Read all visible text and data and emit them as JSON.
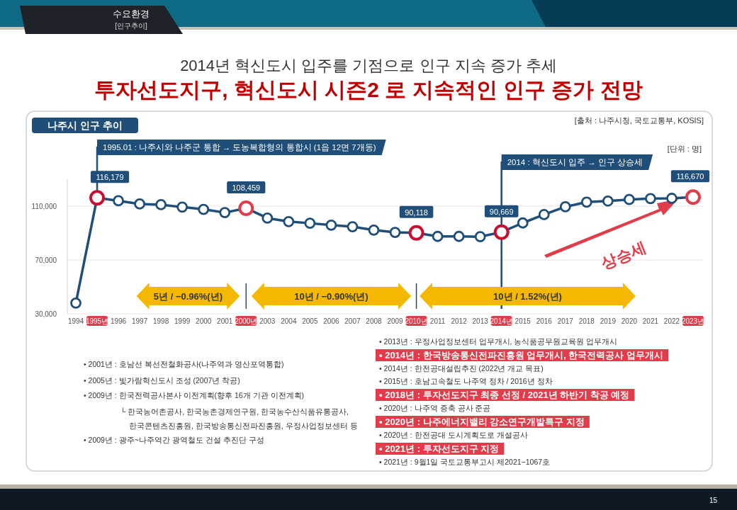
{
  "chart_data": {
    "type": "line",
    "title": "2014년 혁신도시 입주를 기점으로 인구 지속 증가 추세",
    "subtitle": "투자선도지구, 혁신도시 시즌2 로 지속적인 인구 증가 전망",
    "categories": [
      "1994",
      "1995년",
      "1996",
      "1997",
      "1998",
      "1999",
      "2000",
      "2001",
      "2000년",
      "2003",
      "2004",
      "2005",
      "2006",
      "2007",
      "2008",
      "2009",
      "2010년",
      "2011",
      "2012",
      "2013",
      "2014년",
      "2015",
      "2016",
      "2017",
      "2018",
      "2019",
      "2020",
      "2021",
      "2022",
      "2023년"
    ],
    "series": [
      {
        "color": "#1f4e79",
        "values": [
          38000,
          116179,
          114000,
          111600,
          111100,
          109300,
          107600,
          105200,
          108459,
          101100,
          98500,
          97300,
          95900,
          94700,
          92200,
          90500,
          90118,
          87500,
          87500,
          87300,
          90669,
          97500,
          103700,
          109500,
          113000,
          113800,
          114900,
          115600,
          115800,
          116670
        ],
        "colors": [
          "#1f4e79",
          "#c8102e",
          "#1f4e79",
          "#1f4e79",
          "#1f4e79",
          "#1f4e79",
          "#1f4e79",
          "#1f4e79",
          "#e03c4a",
          "#1f4e79",
          "#1f4e79",
          "#1f4e79",
          "#1f4e79",
          "#1f4e79",
          "#1f4e79",
          "#1f4e79",
          "#c8102e",
          "#1f4e79",
          "#1f4e79",
          "#1f4e79",
          "#c8102e",
          "#1f4e79",
          "#1f4e79",
          "#1f4e79",
          "#1f4e79",
          "#1f4e79",
          "#1f4e79",
          "#1f4e79",
          "#1f4e79",
          "#e03c4a"
        ],
        "value_labels": [
          null,
          "116,179",
          null,
          null,
          null,
          null,
          null,
          null,
          "108,459",
          null,
          null,
          null,
          null,
          null,
          null,
          null,
          "90,118",
          null,
          null,
          null,
          "90,669",
          null,
          null,
          null,
          null,
          null,
          null,
          null,
          null,
          "116,670"
        ]
      }
    ],
    "ylim": [
      30000,
      130000
    ],
    "yticks": [
      {
        "value": 30000,
        "label": "30,000"
      },
      {
        "value": 70000,
        "label": "70,000"
      },
      {
        "value": 110000,
        "label": "110,000"
      }
    ],
    "grid": "y",
    "marker": "circle",
    "line_style": "solid",
    "ref_lines": [
      {
        "axis": "x",
        "value": "2014년",
        "label": "2014 : 혁신도시 입주 → 인구 상승세",
        "color": "#1f4e79"
      }
    ],
    "annotations": [
      "수요환경",
      "[인구추이]",
      "나주시 인구 추이",
      "[출처 : 나주시청, 국토교통부, KOSIS]",
      "[단위 : 명]",
      {
        "text": "1995.01 : 나주시와 나주군 통합 → 도농복합형의 통합시 (1읍 12면 7개동)",
        "x": "1995년",
        "y": 116179
      },
      "5년 / −0.96%(년)",
      "10년 / −0.90%(년)",
      "10년 / 1.52%(년)",
      "상승세",
      "• 2001년 : 호남선 복선전철화공사(나주역과 영산포역통합)",
      "• 2005년 : 빛가람혁신도시 조성 (2007년 착공)",
      "• 2009년 : 한국전력공사본사 이전계획(향후 16개 기관 이전계획)",
      "└ 한국농어촌공사, 한국농촌경제연구원, 한국농수산식품유통공사,",
      "한국콘텐츠진흥원, 한국방송통신전파진흥원, 우정사업정보센터 등",
      "• 2009년 : 광주~나주역간 광역철도 건설 추진단 구성",
      "• 2013년 : 우정사업정보센터 업무개시, 농식품공무원교육원 업무개시",
      "• 2014년 : 한국방송통신전파진흥원 업무개시, 한국전력공사 업무개시",
      "• 2014년 : 한전공대설립추진 (2022년 개교 목표)",
      "• 2015년 : 호남고속철도 나주역 정차 / 2016년 정차",
      "• 2018년 : 투자선도지구 최종 선정 / 2021년 하반기 착공 예정",
      "• 2020년 : 나주역 증축 공사 준공",
      "• 2020년 : 나주에너지밸리 강소연구개발특구 지정",
      "• 2020년 : 한전공대 도시계획도로 개설공사",
      "• 2021년 : 투자선도지구 지정",
      "• 2021년 : 9월1일 국토교통부고시 제2021−1067호",
      "15"
    ]
  }
}
